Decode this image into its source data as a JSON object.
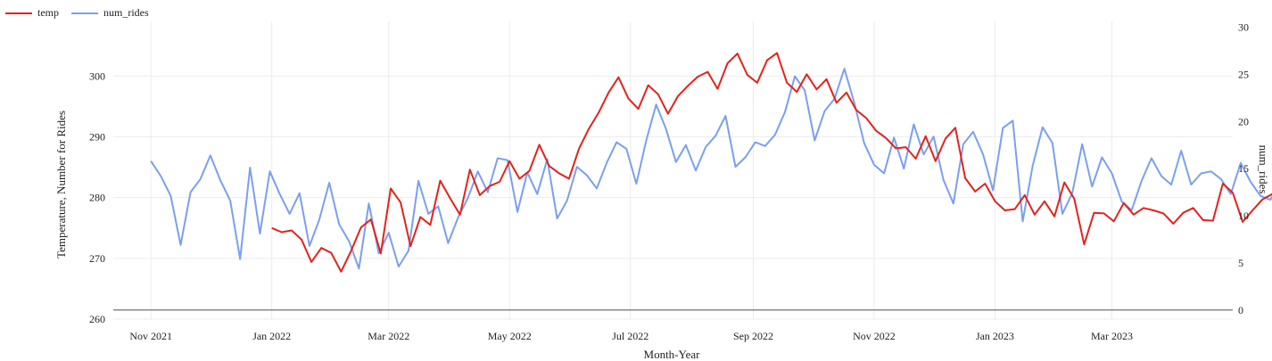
{
  "chart_data": {
    "type": "line",
    "xlabel": "Month-Year",
    "ylabel": "Temperature, Number for Rides",
    "y2label": "num_rides",
    "x_range": [
      "2021-10-13",
      "2023-05-01"
    ],
    "y_left_range": [
      260,
      309
    ],
    "y_right_range": [
      0,
      31
    ],
    "x_ticks": [
      "Nov 2021",
      "Jan 2022",
      "Mar 2022",
      "May 2022",
      "Jul 2022",
      "Sep 2022",
      "Nov 2022",
      "Jan 2023",
      "Mar 2023"
    ],
    "y_left_ticks": [
      260,
      270,
      280,
      290,
      300
    ],
    "y_right_ticks": [
      0,
      5,
      10,
      15,
      20,
      25,
      30
    ],
    "legend_position": "top-left",
    "grid": true,
    "series": [
      {
        "name": "temp",
        "axis": "left",
        "color": "#e3221c",
        "step_days": 5,
        "start_date": "2022-01-01",
        "values": [
          275.0,
          274.3,
          274.6,
          273.1,
          269.4,
          271.7,
          270.9,
          267.8,
          271.2,
          275.1,
          276.4,
          270.8,
          281.5,
          279.2,
          272.0,
          276.8,
          275.5,
          282.8,
          279.9,
          277.2,
          284.6,
          280.4,
          281.9,
          282.6,
          286.0,
          283.1,
          284.4,
          288.7,
          285.2,
          284.0,
          283.1,
          288.0,
          291.3,
          294.0,
          297.3,
          299.8,
          296.3,
          294.6,
          298.5,
          297.0,
          293.8,
          296.7,
          298.4,
          299.9,
          300.7,
          297.9,
          302.1,
          303.7,
          300.2,
          298.9,
          302.6,
          303.8,
          298.9,
          297.4,
          300.3,
          297.8,
          299.5,
          295.6,
          297.3,
          294.4,
          293.1,
          291.0,
          289.8,
          288.1,
          288.3,
          286.4,
          290.1,
          286.0,
          289.7,
          291.5,
          283.2,
          281.0,
          282.3,
          279.4,
          277.9,
          278.1,
          280.4,
          277.2,
          279.4,
          276.9,
          282.5,
          279.8,
          272.3,
          277.5,
          277.4,
          276.1,
          279.1,
          277.2,
          278.3,
          277.9,
          277.4,
          275.7,
          277.5,
          278.3,
          276.3,
          276.2,
          282.3,
          280.8,
          276.0,
          277.9,
          279.7,
          280.6,
          280.1,
          283.2,
          280.9
        ]
      },
      {
        "name": "num_rides",
        "axis": "right",
        "color": "#7b9ff0",
        "step_days": 5,
        "start_date": "2021-11-01",
        "values": [
          15.8,
          14.2,
          12.1,
          6.9,
          12.5,
          13.9,
          16.4,
          13.8,
          11.6,
          5.4,
          15.1,
          8.1,
          14.7,
          12.3,
          10.2,
          12.4,
          6.8,
          9.6,
          13.5,
          9.1,
          7.3,
          4.4,
          11.3,
          6.0,
          8.2,
          4.6,
          6.3,
          13.7,
          10.2,
          11.0,
          7.1,
          9.8,
          11.9,
          14.7,
          12.5,
          16.1,
          15.9,
          10.4,
          14.6,
          12.3,
          16.0,
          9.7,
          11.6,
          15.2,
          14.3,
          12.9,
          15.6,
          17.8,
          17.1,
          13.4,
          18.0,
          21.8,
          19.2,
          15.7,
          17.5,
          14.8,
          17.3,
          18.5,
          20.6,
          15.2,
          16.2,
          17.8,
          17.4,
          18.6,
          21.0,
          24.8,
          23.3,
          18.0,
          21.1,
          22.4,
          25.6,
          22.0,
          17.7,
          15.4,
          14.5,
          18.3,
          15.0,
          19.7,
          16.5,
          18.4,
          13.8,
          11.3,
          17.6,
          18.9,
          16.5,
          12.7,
          19.3,
          20.1,
          9.4,
          15.3,
          19.4,
          17.7,
          10.2,
          12.4,
          17.6,
          13.1,
          16.2,
          14.5,
          11.5,
          10.6,
          13.7,
          16.1,
          14.2,
          13.3,
          16.9,
          13.3,
          14.5,
          14.7,
          13.9,
          12.3,
          15.6,
          13.6,
          12.1,
          11.7,
          13.6,
          12.1,
          14.1,
          14.9
        ]
      }
    ]
  }
}
